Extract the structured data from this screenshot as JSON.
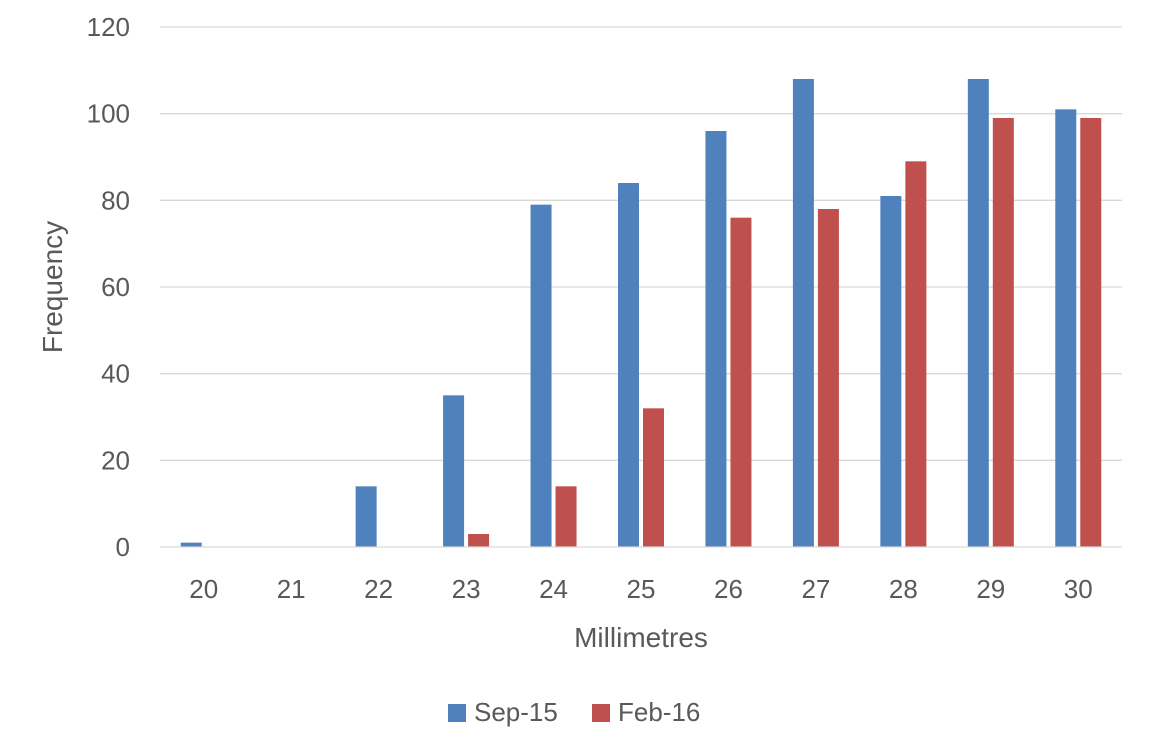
{
  "chart_data": {
    "type": "bar",
    "title": "",
    "xlabel": "Millimetres",
    "ylabel": "Frequency",
    "categories": [
      "20",
      "21",
      "22",
      "23",
      "24",
      "25",
      "26",
      "27",
      "28",
      "29",
      "30"
    ],
    "series": [
      {
        "name": "Sep-15",
        "color": "#4F81BD",
        "values": [
          1,
          0,
          14,
          35,
          79,
          84,
          96,
          108,
          81,
          108,
          101
        ]
      },
      {
        "name": "Feb-16",
        "color": "#C0504D",
        "values": [
          0,
          0,
          0,
          3,
          14,
          32,
          76,
          78,
          89,
          99,
          99
        ]
      }
    ],
    "ylim": [
      0,
      120
    ],
    "yticks": [
      0,
      20,
      40,
      60,
      80,
      100,
      120
    ],
    "grid": true,
    "legend_position": "bottom"
  }
}
